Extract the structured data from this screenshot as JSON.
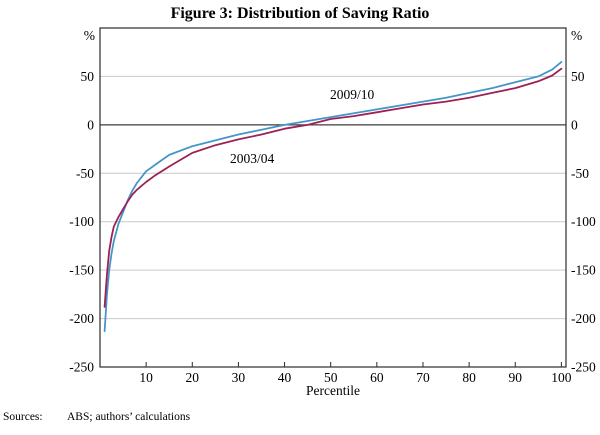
{
  "figure": {
    "title": "Figure 3: Distribution of Saving Ratio"
  },
  "footer": {
    "sources_label": "Sources:",
    "sources_text": "ABS; authors’ calculations"
  },
  "chart_data": {
    "type": "line",
    "title": "Figure 3: Distribution of Saving Ratio",
    "xlabel": "Percentile",
    "ylabel": "",
    "y_unit": "%",
    "xlim": [
      0,
      101
    ],
    "ylim": [
      -250,
      100
    ],
    "x_ticks": [
      10,
      20,
      30,
      40,
      50,
      60,
      70,
      80,
      90,
      100
    ],
    "y_tick_labels": [
      50,
      0,
      -50,
      -100,
      -150,
      -200,
      -250
    ],
    "y_gridlines": [
      50,
      -50,
      -100,
      -150,
      -200
    ],
    "zero_line": 0,
    "grid": "horizontal",
    "legend_position": "inline-labels",
    "x": [
      1,
      1.5,
      2,
      2.5,
      3,
      4,
      5,
      6,
      7,
      8,
      10,
      12,
      15,
      20,
      25,
      30,
      35,
      40,
      45,
      50,
      55,
      60,
      65,
      70,
      75,
      80,
      85,
      90,
      95,
      98,
      100
    ],
    "series": [
      {
        "name": "2009/10",
        "color": "#4596c8",
        "values": [
          -213,
          -176,
          -150,
          -133,
          -120,
          -102,
          -90,
          -78,
          -68,
          -60,
          -48,
          -41,
          -31,
          -22,
          -16,
          -10,
          -5,
          0,
          4,
          8,
          12,
          16,
          20,
          24,
          28,
          33,
          38,
          44,
          50,
          57,
          65
        ]
      },
      {
        "name": "2003/04",
        "color": "#9e2155",
        "values": [
          -188,
          -155,
          -130,
          -116,
          -105,
          -95,
          -87,
          -79,
          -72,
          -67,
          -59,
          -52,
          -43,
          -29,
          -21,
          -15,
          -10,
          -4,
          0,
          6,
          9,
          13,
          17,
          21,
          24,
          28,
          33,
          38,
          45,
          51,
          58
        ]
      }
    ],
    "colors": {
      "gridline": "#c9c9c9",
      "zero_line": "#3d3d3d",
      "axis_box": "#2b2b2b"
    }
  }
}
